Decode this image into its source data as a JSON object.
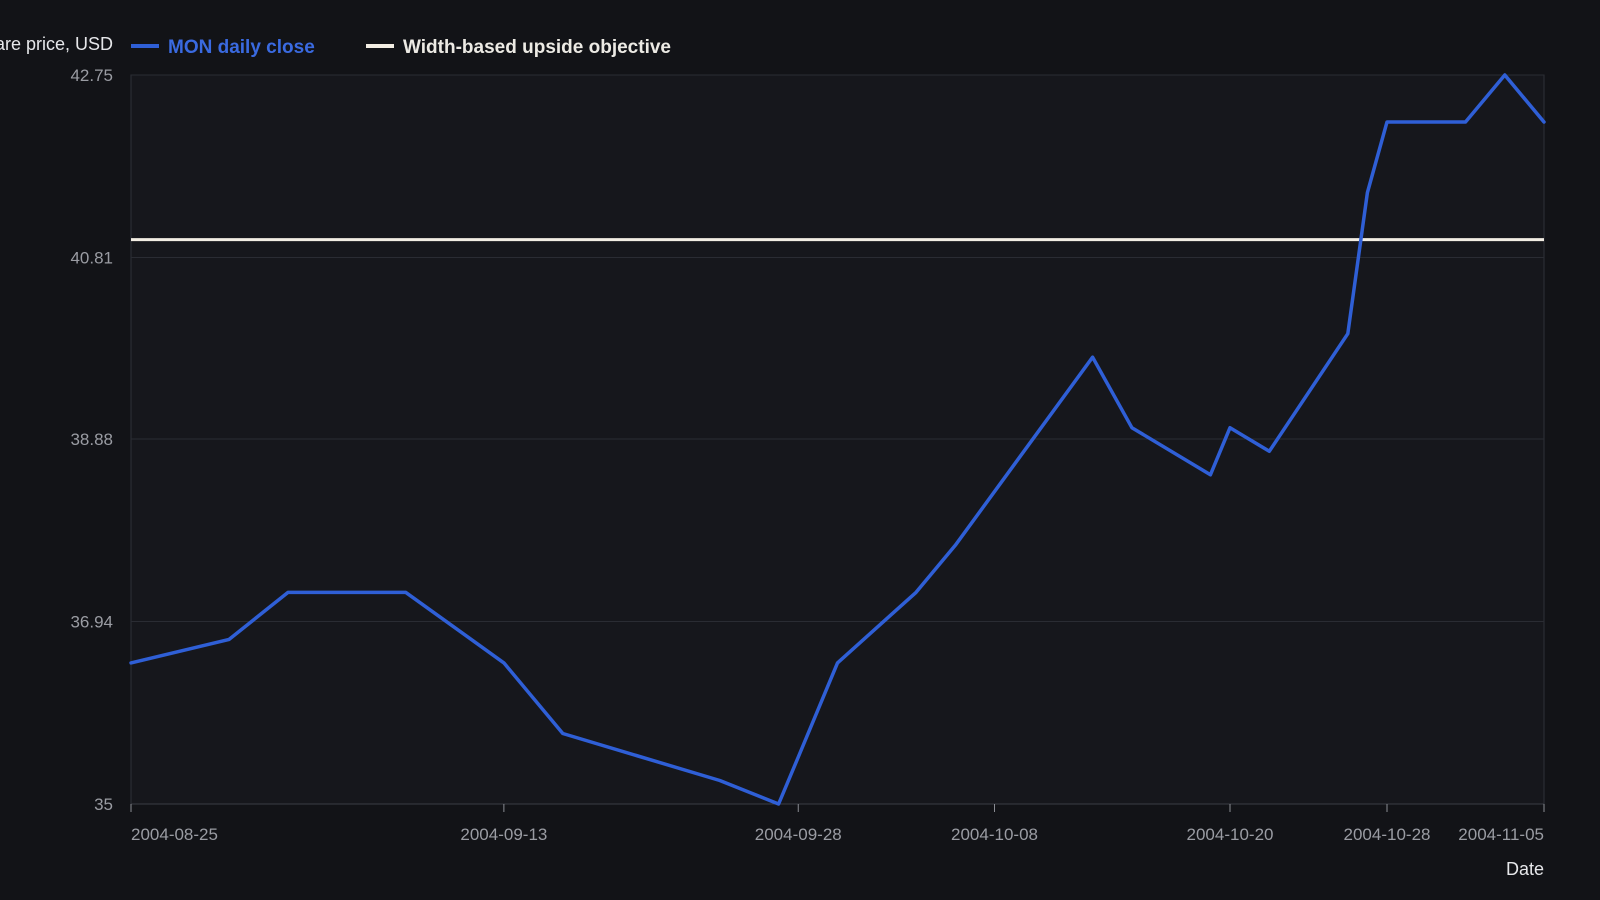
{
  "chart_data": {
    "type": "line",
    "ylabel": "Share price, USD",
    "xlabel": "Date",
    "ylim": [
      35,
      42.75
    ],
    "y_ticks": [
      "35",
      "36.94",
      "38.88",
      "40.81",
      "42.75"
    ],
    "x_ticks": [
      "2004-08-25",
      "2004-09-13",
      "2004-09-28",
      "2004-10-08",
      "2004-10-20",
      "2004-10-28",
      "2004-11-05"
    ],
    "grid": true,
    "legend_position": "top-left",
    "series": [
      {
        "name": "MON daily close",
        "color": "#2f5fd6",
        "points": [
          [
            "2004-08-25",
            36.5
          ],
          [
            "2004-08-30",
            36.75
          ],
          [
            "2004-09-02",
            37.25
          ],
          [
            "2004-09-08",
            37.25
          ],
          [
            "2004-09-13",
            36.5
          ],
          [
            "2004-09-16",
            35.75
          ],
          [
            "2004-09-24",
            35.25
          ],
          [
            "2004-09-27",
            35.0
          ],
          [
            "2004-09-28",
            35.5
          ],
          [
            "2004-09-30",
            36.5
          ],
          [
            "2004-10-04",
            37.25
          ],
          [
            "2004-10-06",
            37.75
          ],
          [
            "2004-10-13",
            39.75
          ],
          [
            "2004-10-15",
            39.0
          ],
          [
            "2004-10-19",
            38.5
          ],
          [
            "2004-10-20",
            39.0
          ],
          [
            "2004-10-22",
            38.75
          ],
          [
            "2004-10-26",
            40.0
          ],
          [
            "2004-10-27",
            41.5
          ],
          [
            "2004-10-28",
            42.25
          ],
          [
            "2004-11-01",
            42.25
          ],
          [
            "2004-11-03",
            42.75
          ],
          [
            "2004-11-05",
            42.25
          ]
        ]
      },
      {
        "name": "Width-based upside objective",
        "color": "#f2ede3",
        "level": 41.0
      }
    ]
  }
}
